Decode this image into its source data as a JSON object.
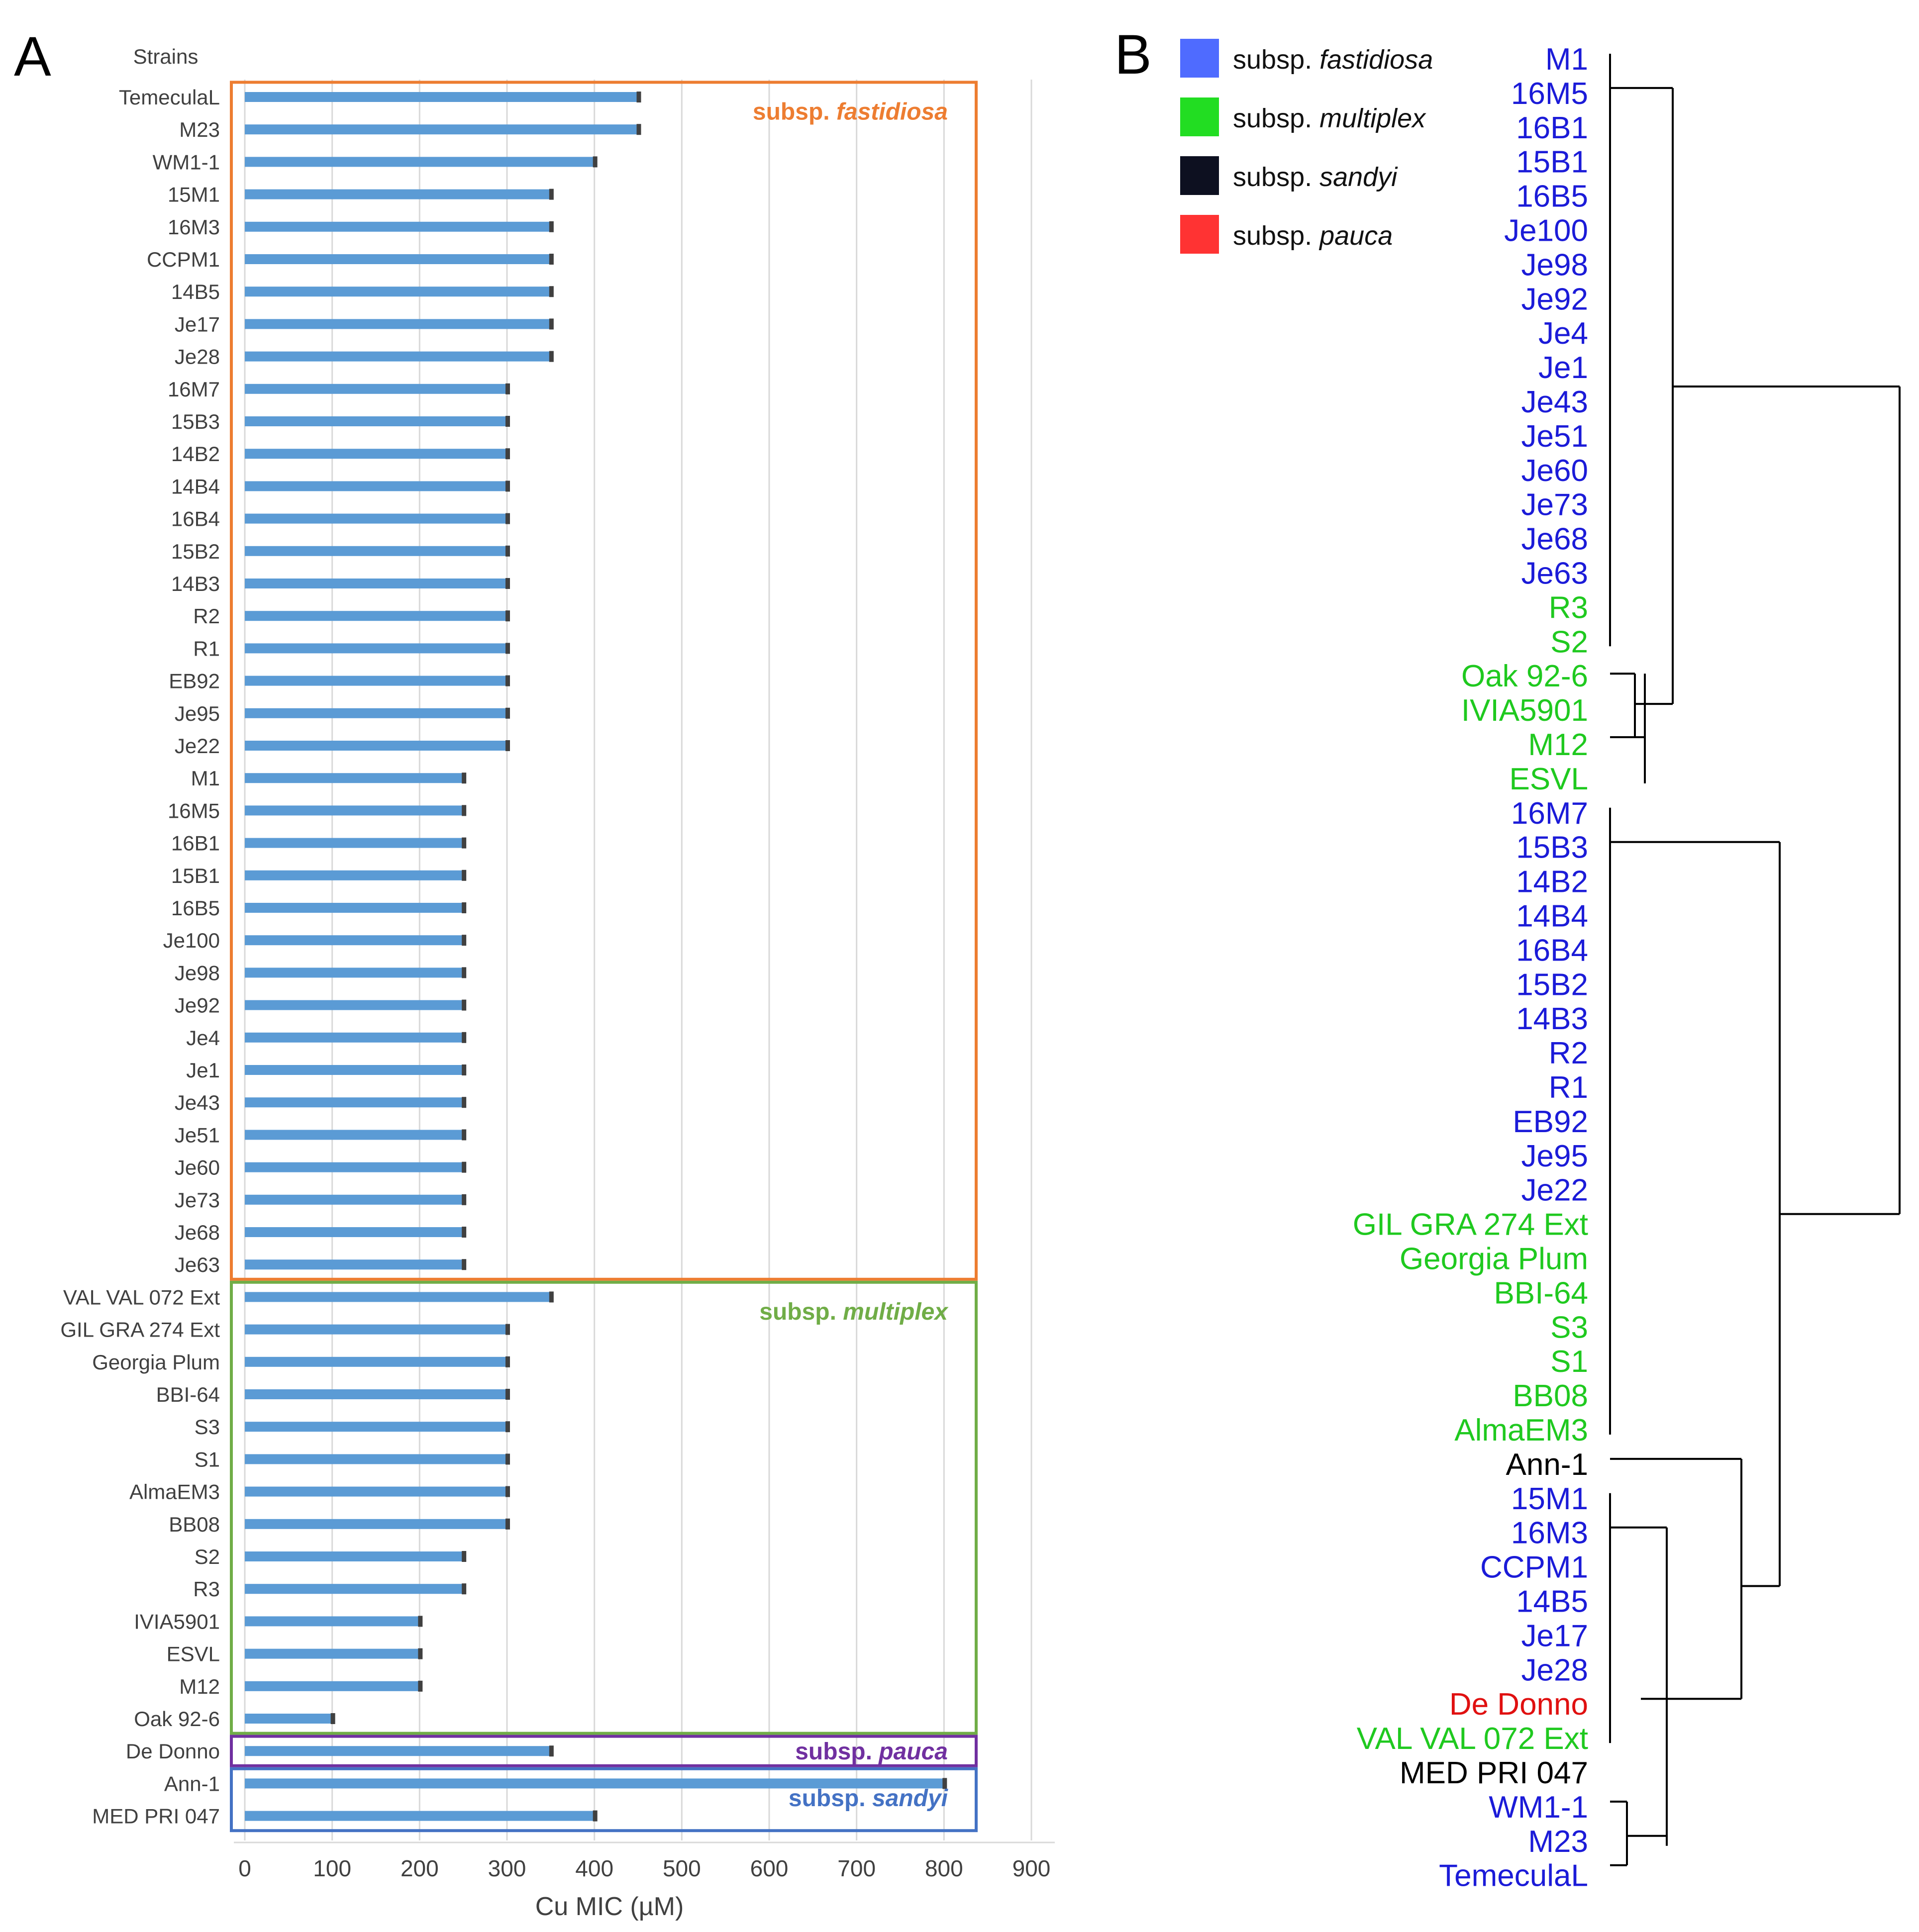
{
  "panelA": {
    "letter": "A",
    "strains_header": "Strains",
    "groups": [
      {
        "prefix": "subsp. ",
        "name": "fastidiosa",
        "color": "#ED7D31"
      },
      {
        "prefix": "subsp. ",
        "name": "multiplex",
        "color": "#70AD47"
      },
      {
        "prefix": "subsp. ",
        "name": "pauca",
        "color": "#7030A0"
      },
      {
        "prefix": "subsp. ",
        "name": "sandyi",
        "color": "#4472C4"
      }
    ]
  },
  "panelB": {
    "letter": "B",
    "legend": [
      {
        "prefix": "subsp. ",
        "name": "fastidiosa",
        "color": "#4F6BFF"
      },
      {
        "prefix": "subsp. ",
        "name": "multiplex",
        "color": "#22DD22"
      },
      {
        "prefix": "subsp. ",
        "name": "sandyi",
        "color": "#0D1020"
      },
      {
        "prefix": "subsp. ",
        "name": "pauca",
        "color": "#FF3333"
      }
    ],
    "leaves": [
      {
        "label": "M1",
        "group": "fastidiosa"
      },
      {
        "label": "16M5",
        "group": "fastidiosa"
      },
      {
        "label": "16B1",
        "group": "fastidiosa"
      },
      {
        "label": "15B1",
        "group": "fastidiosa"
      },
      {
        "label": "16B5",
        "group": "fastidiosa"
      },
      {
        "label": "Je100",
        "group": "fastidiosa"
      },
      {
        "label": "Je98",
        "group": "fastidiosa"
      },
      {
        "label": "Je92",
        "group": "fastidiosa"
      },
      {
        "label": "Je4",
        "group": "fastidiosa"
      },
      {
        "label": "Je1",
        "group": "fastidiosa"
      },
      {
        "label": "Je43",
        "group": "fastidiosa"
      },
      {
        "label": "Je51",
        "group": "fastidiosa"
      },
      {
        "label": "Je60",
        "group": "fastidiosa"
      },
      {
        "label": "Je73",
        "group": "fastidiosa"
      },
      {
        "label": "Je68",
        "group": "fastidiosa"
      },
      {
        "label": "Je63",
        "group": "fastidiosa"
      },
      {
        "label": "R3",
        "group": "multiplex"
      },
      {
        "label": "S2",
        "group": "multiplex"
      },
      {
        "label": "Oak 92-6",
        "group": "multiplex"
      },
      {
        "label": "IVIA5901",
        "group": "multiplex"
      },
      {
        "label": "M12",
        "group": "multiplex"
      },
      {
        "label": "ESVL",
        "group": "multiplex"
      },
      {
        "label": "16M7",
        "group": "fastidiosa"
      },
      {
        "label": "15B3",
        "group": "fastidiosa"
      },
      {
        "label": "14B2",
        "group": "fastidiosa"
      },
      {
        "label": "14B4",
        "group": "fastidiosa"
      },
      {
        "label": "16B4",
        "group": "fastidiosa"
      },
      {
        "label": "15B2",
        "group": "fastidiosa"
      },
      {
        "label": "14B3",
        "group": "fastidiosa"
      },
      {
        "label": "R2",
        "group": "fastidiosa"
      },
      {
        "label": "R1",
        "group": "fastidiosa"
      },
      {
        "label": "EB92",
        "group": "fastidiosa"
      },
      {
        "label": "Je95",
        "group": "fastidiosa"
      },
      {
        "label": "Je22",
        "group": "fastidiosa"
      },
      {
        "label": "GIL GRA 274 Ext",
        "group": "multiplex"
      },
      {
        "label": "Georgia Plum",
        "group": "multiplex"
      },
      {
        "label": "BBI-64",
        "group": "multiplex"
      },
      {
        "label": "S3",
        "group": "multiplex"
      },
      {
        "label": "S1",
        "group": "multiplex"
      },
      {
        "label": "BB08",
        "group": "multiplex"
      },
      {
        "label": "AlmaEM3",
        "group": "multiplex"
      },
      {
        "label": "Ann-1",
        "group": "sandyi"
      },
      {
        "label": "15M1",
        "group": "fastidiosa"
      },
      {
        "label": "16M3",
        "group": "fastidiosa"
      },
      {
        "label": "CCPM1",
        "group": "fastidiosa"
      },
      {
        "label": "14B5",
        "group": "fastidiosa"
      },
      {
        "label": "Je17",
        "group": "fastidiosa"
      },
      {
        "label": "Je28",
        "group": "fastidiosa"
      },
      {
        "label": "De Donno",
        "group": "pauca"
      },
      {
        "label": "VAL VAL 072 Ext",
        "group": "multiplex"
      },
      {
        "label": "MED PRI 047",
        "group": "sandyi"
      },
      {
        "label": "WM1-1",
        "group": "fastidiosa"
      },
      {
        "label": "M23",
        "group": "fastidiosa"
      },
      {
        "label": "TemeculaL",
        "group": "fastidiosa"
      }
    ],
    "leaf_colors": {
      "fastidiosa": "#1B1BD8",
      "multiplex": "#1FC91F",
      "sandyi": "#000000",
      "pauca": "#E01010"
    }
  },
  "chart_data": {
    "type": "bar",
    "orientation": "horizontal",
    "xlabel": "Cu MIC (µM)",
    "ylabel": "Strains",
    "xlim": [
      0,
      900
    ],
    "xticks": [
      0,
      100,
      200,
      300,
      400,
      500,
      600,
      700,
      800,
      900
    ],
    "grid": true,
    "bar_color": "#5B9BD5",
    "categories": [
      "TemeculaL",
      "M23",
      "WM1-1",
      "15M1",
      "16M3",
      "CCPM1",
      "14B5",
      "Je17",
      "Je28",
      "16M7",
      "15B3",
      "14B2",
      "14B4",
      "16B4",
      "15B2",
      "14B3",
      "R2",
      "R1",
      "EB92",
      "Je95",
      "Je22",
      "M1",
      "16M5",
      "16B1",
      "15B1",
      "16B5",
      "Je100",
      "Je98",
      "Je92",
      "Je4",
      "Je1",
      "Je43",
      "Je51",
      "Je60",
      "Je73",
      "Je68",
      "Je63",
      "VAL VAL 072 Ext",
      "GIL GRA 274 Ext",
      "Georgia Plum",
      "BBI-64",
      "S3",
      "S1",
      "AlmaEM3",
      "BB08",
      "S2",
      "R3",
      "IVIA5901",
      "ESVL",
      "M12",
      "Oak 92-6",
      "De Donno",
      "Ann-1",
      "MED PRI 047"
    ],
    "values": [
      450,
      450,
      400,
      350,
      350,
      350,
      350,
      350,
      350,
      300,
      300,
      300,
      300,
      300,
      300,
      300,
      300,
      300,
      300,
      300,
      300,
      250,
      250,
      250,
      250,
      250,
      250,
      250,
      250,
      250,
      250,
      250,
      250,
      250,
      250,
      250,
      250,
      350,
      300,
      300,
      300,
      300,
      300,
      300,
      300,
      250,
      250,
      200,
      200,
      200,
      100,
      350,
      800,
      400
    ],
    "groups": [
      {
        "name": "subsp. fastidiosa",
        "start": 0,
        "end": 36
      },
      {
        "name": "subsp. multiplex",
        "start": 37,
        "end": 50
      },
      {
        "name": "subsp. pauca",
        "start": 51,
        "end": 51
      },
      {
        "name": "subsp. sandyi",
        "start": 52,
        "end": 53
      }
    ]
  }
}
